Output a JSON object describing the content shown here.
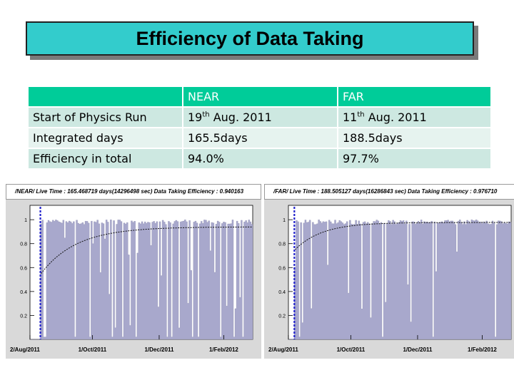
{
  "title": "Efficiency of Data Taking",
  "table": {
    "columns": [
      "",
      "NEAR",
      "FAR"
    ],
    "rows": [
      {
        "label": "Start of Physics Run",
        "near": {
          "day": "19",
          "sup": "th",
          "rest": " Aug. 2011"
        },
        "far": {
          "day": "11",
          "sup": "th",
          "rest": " Aug. 2011"
        }
      },
      {
        "label": "Integrated days",
        "near": "165.5days",
        "far": "188.5days"
      },
      {
        "label": "Efficiency in total",
        "near": "94.0%",
        "far": "97.7%"
      }
    ]
  },
  "plots": [
    {
      "header": "/NEAR/ Live Time : 165.468719 days(14296498 sec)   Data Taking Efficiency : 0.940163",
      "y_ticks": [
        "1",
        "0.8",
        "0.6",
        "0.4",
        "0.2"
      ],
      "x_ticks": [
        "2/Aug/2011",
        "1/Oct/2011",
        "1/Dec/2011",
        "1/Feb/2012"
      ]
    },
    {
      "header": "/FAR/ Live Time : 188.505127 days(16286843 sec)   Data Taking Efficiency : 0.976710",
      "y_ticks": [
        "1",
        "0.8",
        "0.6",
        "0.4",
        "0.2"
      ],
      "x_ticks": [
        "2/Aug/2011",
        "1/Oct/2011",
        "1/Dec/2011",
        "1/Feb/2012"
      ]
    }
  ],
  "colors": {
    "title_bg": "#33cccc",
    "header_bg": "#00cc99",
    "hist_fill": "#a8a8cc",
    "marker_line": "#2222cc"
  }
}
